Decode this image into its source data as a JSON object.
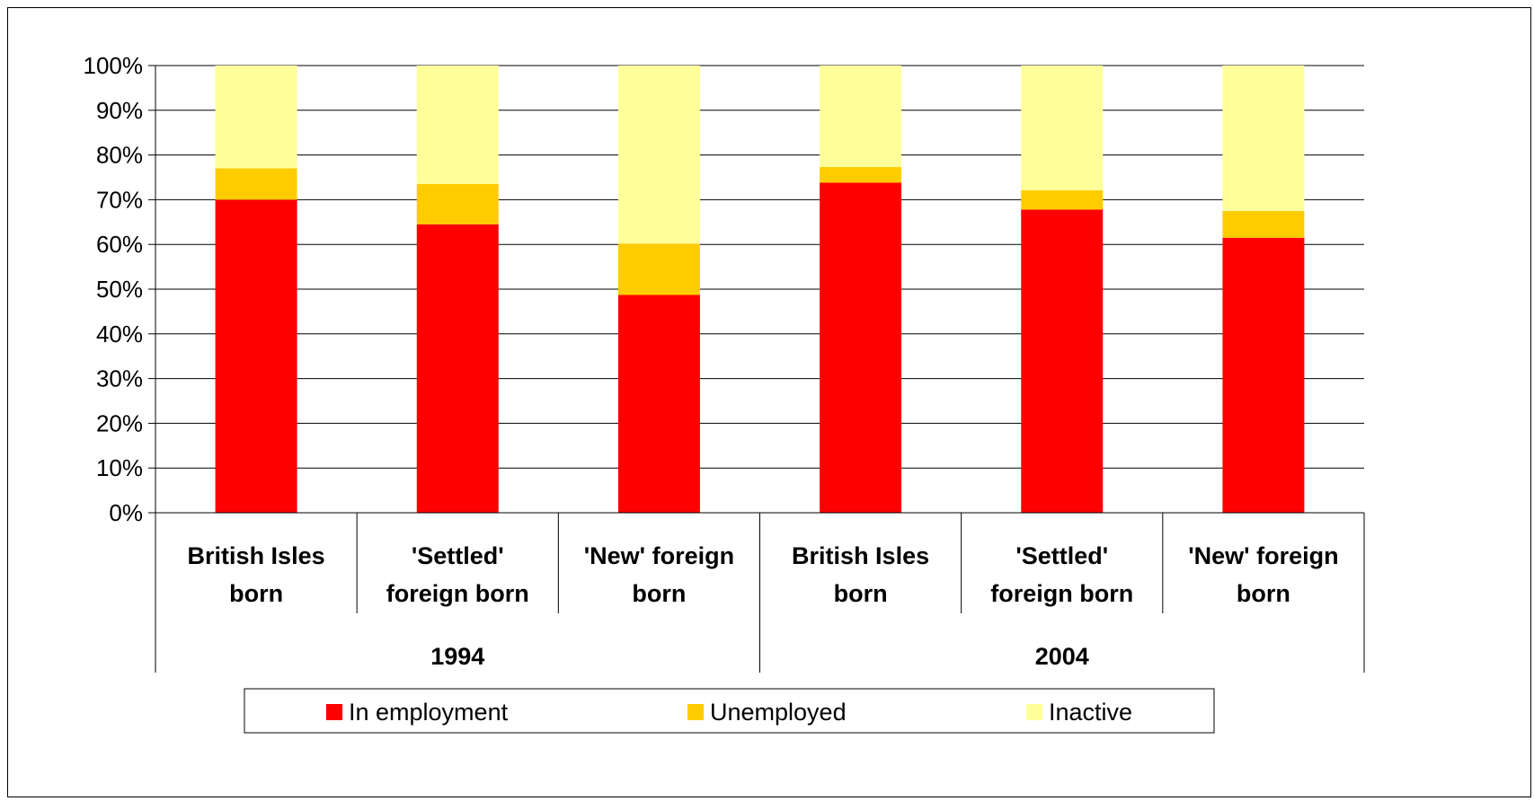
{
  "chart_data": {
    "type": "bar",
    "stacked": true,
    "percent_stacked": true,
    "groups": [
      {
        "label": "1994",
        "categories": [
          "British Isles born",
          "'Settled' foreign born",
          "'New' foreign born"
        ]
      },
      {
        "label": "2004",
        "categories": [
          "British Isles born",
          "'Settled' foreign born",
          "'New' foreign born"
        ]
      }
    ],
    "categories": [
      [
        "British Isles",
        "born"
      ],
      [
        "'Settled'",
        "foreign born"
      ],
      [
        "'New' foreign",
        "born"
      ],
      [
        "British Isles",
        "born"
      ],
      [
        "'Settled'",
        "foreign born"
      ],
      [
        "'New' foreign",
        "born"
      ]
    ],
    "series": [
      {
        "name": "In employment",
        "color": "#ff0000",
        "values": [
          70,
          64.5,
          48.7,
          73.8,
          67.8,
          61.5
        ]
      },
      {
        "name": "Unemployed",
        "color": "#ffcc00",
        "values": [
          7,
          9,
          11.5,
          3.5,
          4.3,
          6
        ]
      },
      {
        "name": "Inactive",
        "color": "#ffff99",
        "values": [
          23,
          26.5,
          39.8,
          22.7,
          27.9,
          32.5
        ]
      }
    ],
    "yticks": [
      "0%",
      "10%",
      "20%",
      "30%",
      "40%",
      "50%",
      "60%",
      "70%",
      "80%",
      "90%",
      "100%"
    ],
    "ylim": [
      0,
      100
    ],
    "grid": true,
    "legend": {
      "position": "bottom",
      "items": [
        "In employment",
        "Unemployed",
        "Inactive"
      ]
    }
  }
}
